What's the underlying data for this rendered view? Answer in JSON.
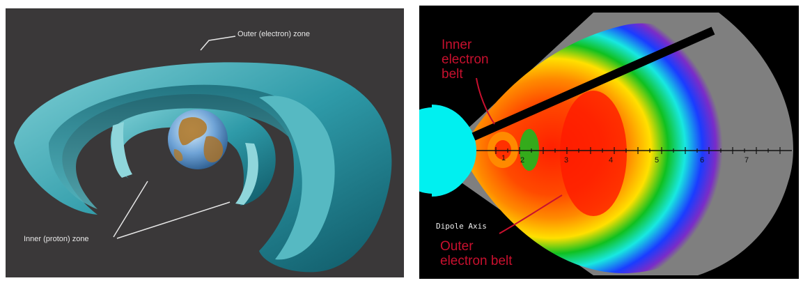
{
  "left_diagram": {
    "outer_zone_label": "Outer (electron) zone",
    "inner_zone_label": "Inner (proton) zone",
    "colors": {
      "background": "#3a3839",
      "belt": "#3aaab6",
      "belt_dark": "#1c6f7e",
      "earth_ocean": "#6fa3d6",
      "earth_land": "#b07a2c"
    }
  },
  "right_plot": {
    "inner_belt_label_lines": [
      "Inner",
      "electron",
      "belt"
    ],
    "outer_belt_label_lines": [
      "Outer",
      "electron belt"
    ],
    "axis_label": "Dipole Axis",
    "axis_ticks": [
      "1",
      "2",
      "3",
      "4",
      "5",
      "6",
      "7"
    ],
    "colors": {
      "background": "#000000",
      "coverage": "#7f7f7f",
      "earth": "#00f0f0",
      "peak": "#ff1a00",
      "annotation": "#c8102e"
    }
  }
}
